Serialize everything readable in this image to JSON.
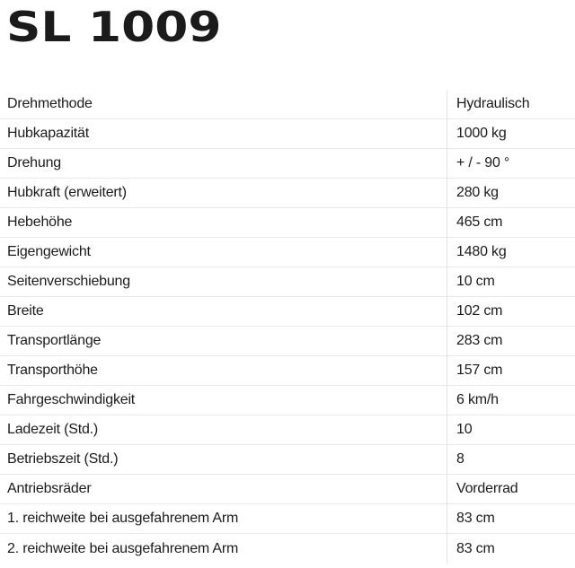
{
  "page": {
    "background_color": "#ffffff",
    "text_color": "#1b1b1b",
    "row_border_color": "#e8e8e8",
    "divider_color": "#e3e3e3"
  },
  "header": {
    "title": "SL 1009"
  },
  "table": {
    "rows": [
      {
        "label": "Drehmethode",
        "value": "Hydraulisch"
      },
      {
        "label": "Hubkapazität",
        "value": "1000 kg"
      },
      {
        "label": "Drehung",
        "value": "+ / - 90 °"
      },
      {
        "label": "Hubkraft (erweitert)",
        "value": "280 kg"
      },
      {
        "label": "Hebehöhe",
        "value": "465 cm"
      },
      {
        "label": "Eigengewicht",
        "value": "1480 kg"
      },
      {
        "label": "Seitenverschiebung",
        "value": "10 cm"
      },
      {
        "label": "Breite",
        "value": "102 cm"
      },
      {
        "label": "Transportlänge",
        "value": "283 cm"
      },
      {
        "label": "Transporthöhe",
        "value": "157 cm"
      },
      {
        "label": "Fahrgeschwindigkeit",
        "value": "6 km/h"
      },
      {
        "label": "Ladezeit (Std.)",
        "value": "10"
      },
      {
        "label": "Betriebszeit (Std.)",
        "value": "8"
      },
      {
        "label": "Antriebsräder",
        "value": "Vorderrad"
      },
      {
        "label": "1. reichweite bei ausgefahrenem Arm",
        "value": "83 cm"
      },
      {
        "label": "2. reichweite bei ausgefahrenem Arm",
        "value": "83 cm"
      }
    ]
  }
}
